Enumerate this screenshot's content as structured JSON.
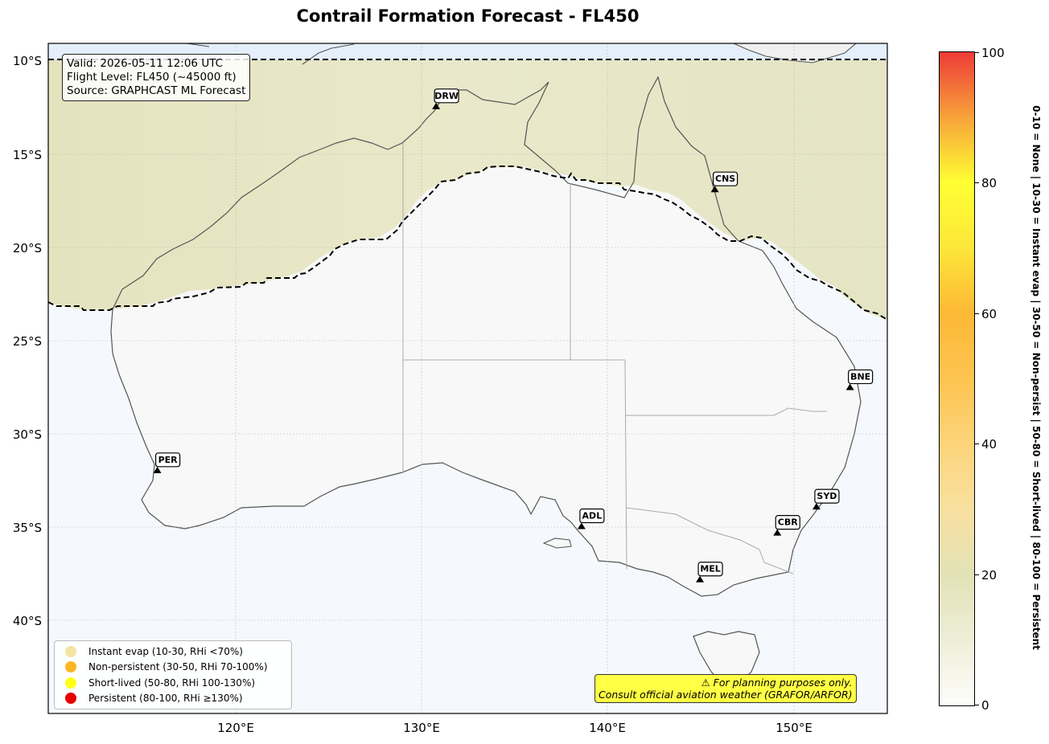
{
  "title": "Contrail Formation Forecast - FL450",
  "info": {
    "valid": "Valid: 2026-05-11 12:06 UTC",
    "flight_level": "Flight Level: FL450 (~45000 ft)",
    "source": "Source: GRAPHCAST ML Forecast"
  },
  "axes": {
    "lat_labels": [
      "10°S",
      "15°S",
      "20°S",
      "25°S",
      "30°S",
      "35°S",
      "40°S"
    ],
    "lon_labels": [
      "120°E",
      "130°E",
      "140°E",
      "150°E"
    ],
    "lon_range": [
      110,
      155
    ],
    "lat_range": [
      -45,
      -9.1
    ]
  },
  "cities": [
    {
      "code": "DRW",
      "lon": 130.8,
      "lat": -12.45
    },
    {
      "code": "CNS",
      "lon": 145.75,
      "lat": -16.9
    },
    {
      "code": "BNE",
      "lon": 153.0,
      "lat": -27.5
    },
    {
      "code": "PER",
      "lon": 115.85,
      "lat": -31.95
    },
    {
      "code": "ADL",
      "lon": 138.6,
      "lat": -34.95
    },
    {
      "code": "SYD",
      "lon": 151.2,
      "lat": -33.9
    },
    {
      "code": "CBR",
      "lon": 149.1,
      "lat": -35.3
    },
    {
      "code": "MEL",
      "lon": 144.95,
      "lat": -37.8
    }
  ],
  "legend": [
    {
      "label": "Instant evap (10-30, RHi <70%)",
      "color": "#f2e4a2"
    },
    {
      "label": "Non-persistent (30-50, RHi 70-100%)",
      "color": "#fdb624"
    },
    {
      "label": "Short-lived (50-80, RHi 100-130%)",
      "color": "#ffff1a"
    },
    {
      "label": "Persistent (80-100, RHi ≥130%)",
      "color": "#e60000"
    }
  ],
  "disclaimer": {
    "line1": "⚠ For planning purposes only.",
    "line2": "Consult official aviation weather (GRAFOR/ARFOR)"
  },
  "colorbar": {
    "ticks": [
      "0",
      "20",
      "40",
      "60",
      "80",
      "100"
    ],
    "title": "0-10 = None  |  10-30 = Instant evap  |  30-50 = Non-persist  |  50-80 = Short-lived  |  80-100 = Persistent"
  }
}
